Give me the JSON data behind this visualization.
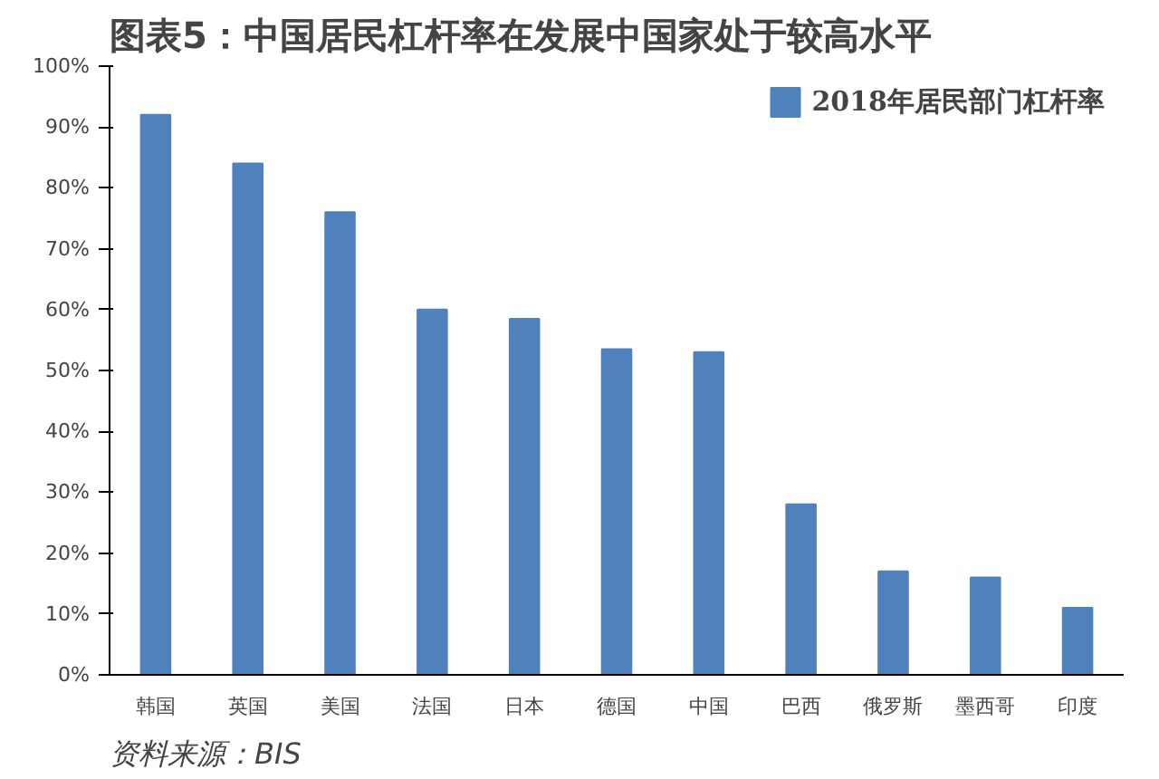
{
  "chart_data": {
    "type": "bar",
    "title": "图表5：中国居民杠杆率在发展中国家处于较高水平",
    "categories": [
      "韩国",
      "英国",
      "美国",
      "法国",
      "日本",
      "德国",
      "中国",
      "巴西",
      "俄罗斯",
      "墨西哥",
      "印度"
    ],
    "series": [
      {
        "name": "2018年居民部门杠杆率",
        "color": "#4f81bd",
        "values": [
          92,
          84,
          76,
          60,
          58.5,
          53.5,
          53,
          28,
          17,
          16,
          11
        ]
      }
    ],
    "ylim": [
      0,
      100
    ],
    "yticks": [
      {
        "value": 0,
        "label": "0%"
      },
      {
        "value": 10,
        "label": "10%"
      },
      {
        "value": 20,
        "label": "20%"
      },
      {
        "value": 30,
        "label": "30%"
      },
      {
        "value": 40,
        "label": "40%"
      },
      {
        "value": 50,
        "label": "50%"
      },
      {
        "value": 60,
        "label": "60%"
      },
      {
        "value": 70,
        "label": "70%"
      },
      {
        "value": 80,
        "label": "80%"
      },
      {
        "value": 90,
        "label": "90%"
      },
      {
        "value": 100,
        "label": "100%"
      }
    ],
    "grid": false,
    "legend": "top right",
    "annotations": [
      "资料来源：BIS"
    ]
  }
}
